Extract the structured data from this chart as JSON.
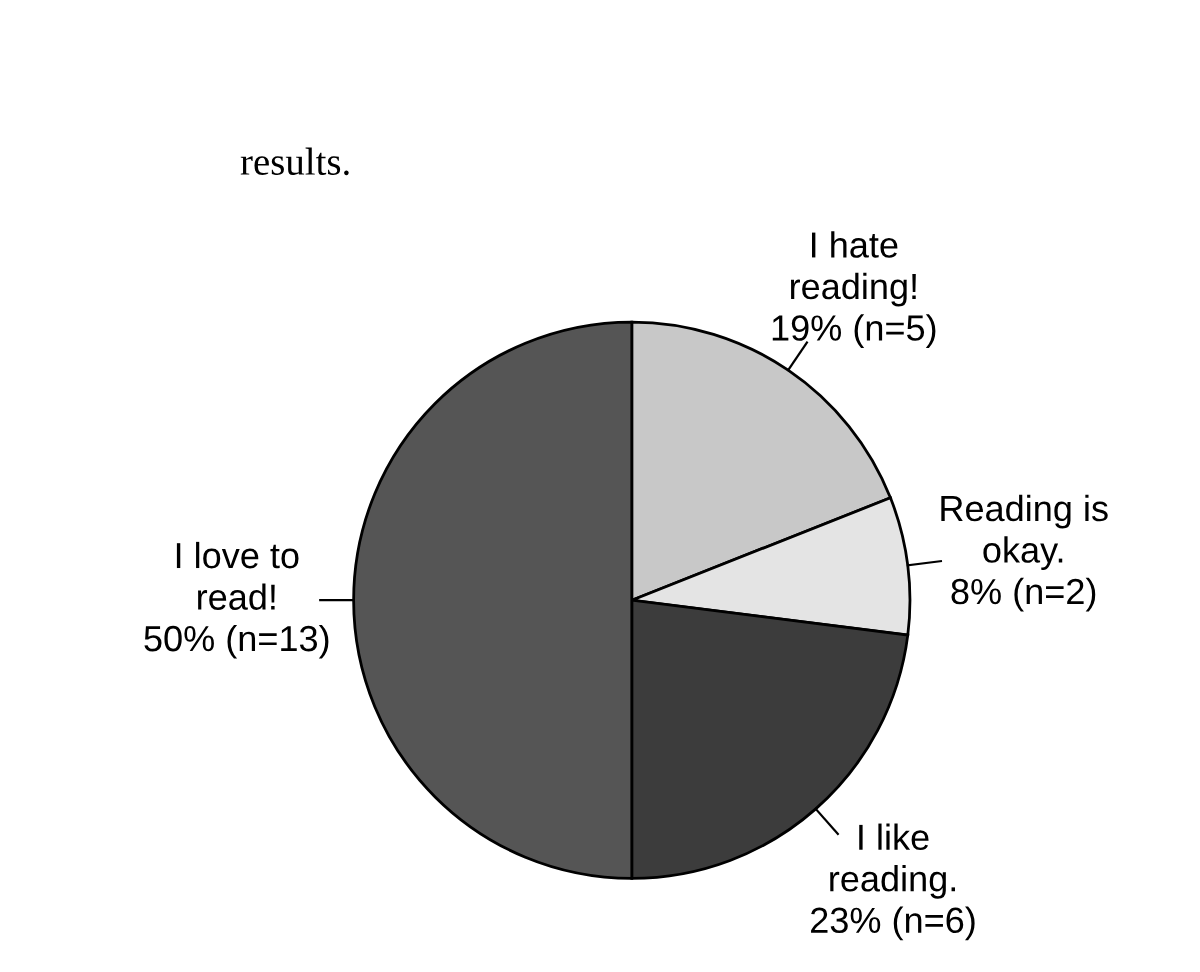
{
  "chart_data": {
    "type": "pie",
    "categories": [
      "I hate\nreading!",
      "Reading is\nokay.",
      "I like\nreading.",
      "I love to\nread!"
    ],
    "values": [
      19,
      8,
      23,
      50
    ],
    "value_labels": [
      "19% (n=5)",
      "8% (n=2)",
      "23% (n=6)",
      "50% (n=13)"
    ],
    "colors": [
      "#c8c8c8",
      "#e4e4e4",
      "#3c3c3c",
      "#555555"
    ],
    "annotations": [
      "results."
    ]
  }
}
